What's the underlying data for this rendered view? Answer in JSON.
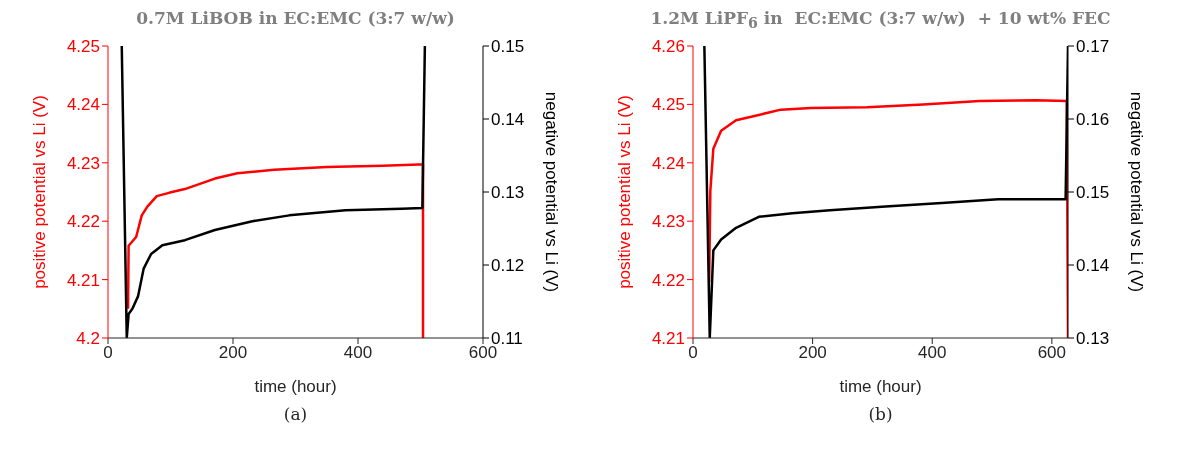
{
  "chart_data": [
    {
      "type": "line",
      "title": "0.7M LiBOB in EC:EMC (3:7 w/w)",
      "xlabel": "time (hour)",
      "ylabel": "positive potential vs Li (V)",
      "y2label": "negative potential vs Li (V)",
      "annotations": [
        "(a)"
      ],
      "xlim": [
        0,
        600
      ],
      "xticks": [
        0,
        200,
        400,
        600
      ],
      "ylim": [
        4.2,
        4.25
      ],
      "yticks": [
        4.2,
        4.21,
        4.22,
        4.23,
        4.24,
        4.25
      ],
      "y2lim": [
        0.11,
        0.15
      ],
      "y2ticks": [
        0.11,
        0.12,
        0.13,
        0.14,
        0.15
      ],
      "series": [
        {
          "color": "#ff0000",
          "x": [
            32,
            33,
            45,
            54,
            63,
            78,
            99,
            123,
            171,
            207,
            266,
            350,
            440,
            497,
            504,
            504
          ],
          "values": [
            4.205,
            4.2158,
            4.2173,
            4.221,
            4.2225,
            4.2243,
            4.2249,
            4.2255,
            4.2273,
            4.2282,
            4.2288,
            4.2293,
            4.2295,
            4.2297,
            4.2297,
            4.2
          ]
        },
        {
          "color": "#000000",
          "axis": "y2",
          "x": [
            22,
            30,
            33,
            39,
            48,
            57,
            69,
            87,
            123,
            171,
            231,
            290,
            380,
            470,
            503,
            507
          ],
          "values": [
            0.15,
            0.11,
            0.1133,
            0.114,
            0.1157,
            0.1195,
            0.1215,
            0.1227,
            0.1234,
            0.1248,
            0.126,
            0.1268,
            0.1275,
            0.1277,
            0.1278,
            0.15
          ]
        }
      ]
    },
    {
      "type": "line",
      "title": "1.2M LiPF$_{6}$ in  EC:EMC (3:7 w/w)  + 10 wt% FEC",
      "xlabel": "time (hour)",
      "ylabel": "positive potential vs Li (V)",
      "y2label": "negative potential vs Li (V)",
      "annotations": [
        "(b)"
      ],
      "xlim": [
        0,
        627
      ],
      "xticks": [
        0,
        200,
        400,
        600
      ],
      "ylim": [
        4.21,
        4.26
      ],
      "yticks": [
        4.21,
        4.22,
        4.23,
        4.24,
        4.25,
        4.26
      ],
      "y2lim": [
        0.13,
        0.17
      ],
      "y2ticks": [
        0.13,
        0.14,
        0.15,
        0.16,
        0.17
      ],
      "series": [
        {
          "color": "#ff0000",
          "x": [
            27,
            29,
            34,
            47,
            72,
            110,
            147,
            197,
            291,
            385,
            479,
            573,
            625,
            627
          ],
          "values": [
            4.2196,
            4.2352,
            4.2424,
            4.2455,
            4.2473,
            4.2482,
            4.2491,
            4.2494,
            4.2495,
            4.25,
            4.2506,
            4.2507,
            4.2506,
            4.21
          ]
        },
        {
          "color": "#000000",
          "axis": "y2",
          "x": [
            19,
            28,
            34,
            47,
            72,
            110,
            166,
            229,
            322,
            416,
            510,
            623,
            627
          ],
          "values": [
            0.17,
            0.13,
            0.142,
            0.1435,
            0.1451,
            0.1466,
            0.1471,
            0.1475,
            0.148,
            0.1485,
            0.149,
            0.149,
            0.17
          ]
        }
      ]
    }
  ]
}
